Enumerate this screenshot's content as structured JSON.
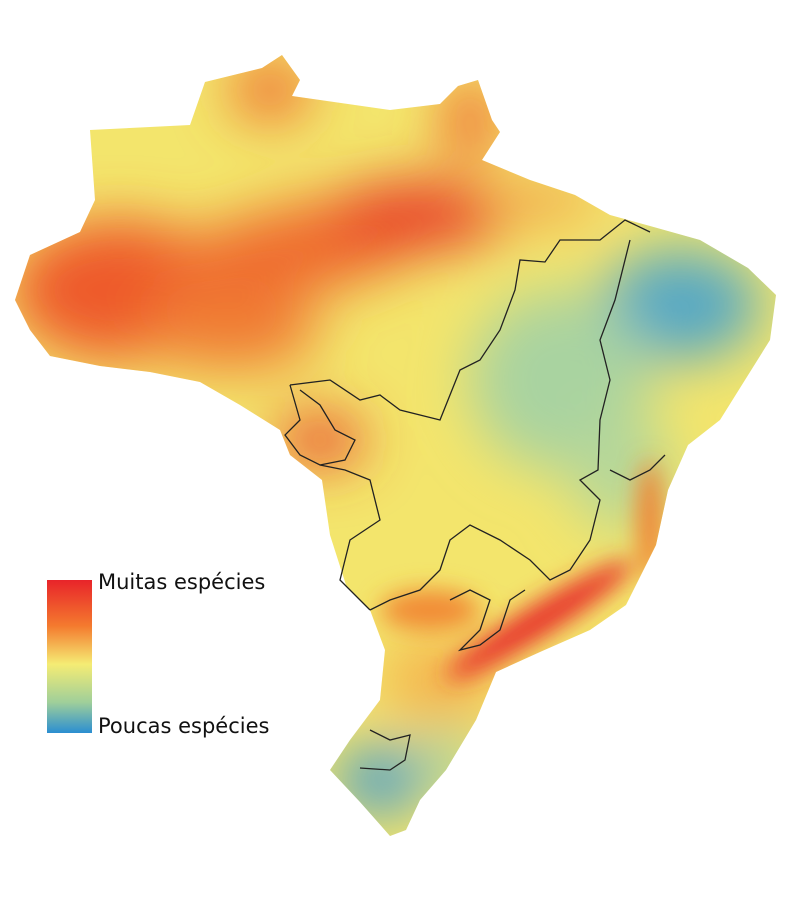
{
  "legend": {
    "high_label": "Muitas espécies",
    "low_label": "Poucas espécies"
  }
}
